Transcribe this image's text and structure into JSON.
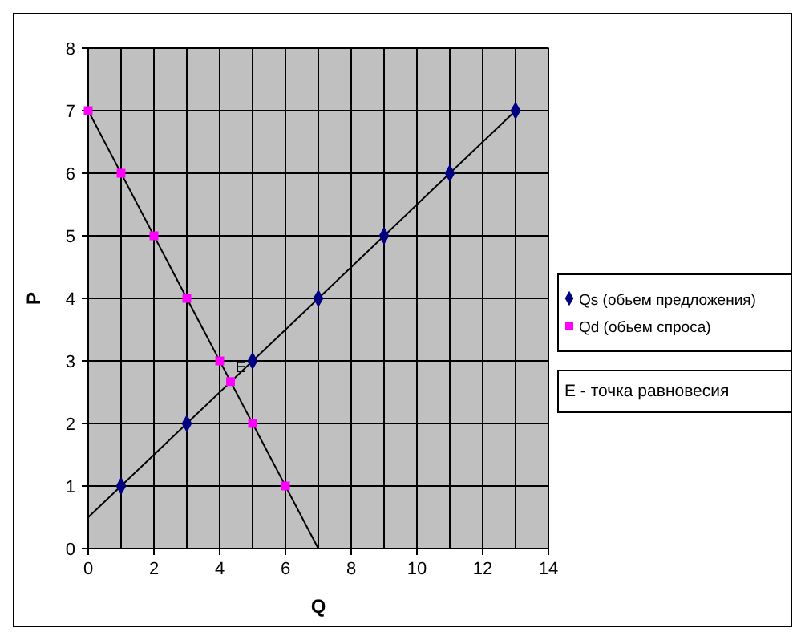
{
  "chart_data": {
    "type": "scatter",
    "xlabel": "Q",
    "ylabel": "P",
    "xlim": [
      0,
      14
    ],
    "ylim": [
      0,
      8
    ],
    "xticks": [
      0,
      2,
      4,
      6,
      8,
      10,
      12,
      14
    ],
    "yticks": [
      0,
      1,
      2,
      3,
      4,
      5,
      6,
      7,
      8
    ],
    "grid": true,
    "legend": "right",
    "series": [
      {
        "type": "line",
        "color": "#000000",
        "marker": "none",
        "x": [
          0,
          13
        ],
        "values": [
          0.5,
          7
        ]
      },
      {
        "type": "line",
        "color": "#000000",
        "marker": "none",
        "x": [
          0,
          7
        ],
        "values": [
          7,
          0
        ]
      },
      {
        "name": "Qs (обьем предложения)",
        "marker": "diamond",
        "color": "#000080",
        "x": [
          1,
          3,
          5,
          7,
          9,
          11,
          13
        ],
        "values": [
          1,
          2,
          3,
          4,
          5,
          6,
          7
        ]
      },
      {
        "name": "Qd (обьем спроса)",
        "marker": "square",
        "color": "#ff00ff",
        "x": [
          0,
          1,
          2,
          3,
          4,
          4.33,
          5,
          6
        ],
        "values": [
          7,
          6,
          5,
          4,
          3,
          2.67,
          2,
          1
        ]
      }
    ],
    "annotations": [
      {
        "text": "E",
        "x": 4.33,
        "y": 2.67
      },
      "E - точка равновесия"
    ]
  }
}
